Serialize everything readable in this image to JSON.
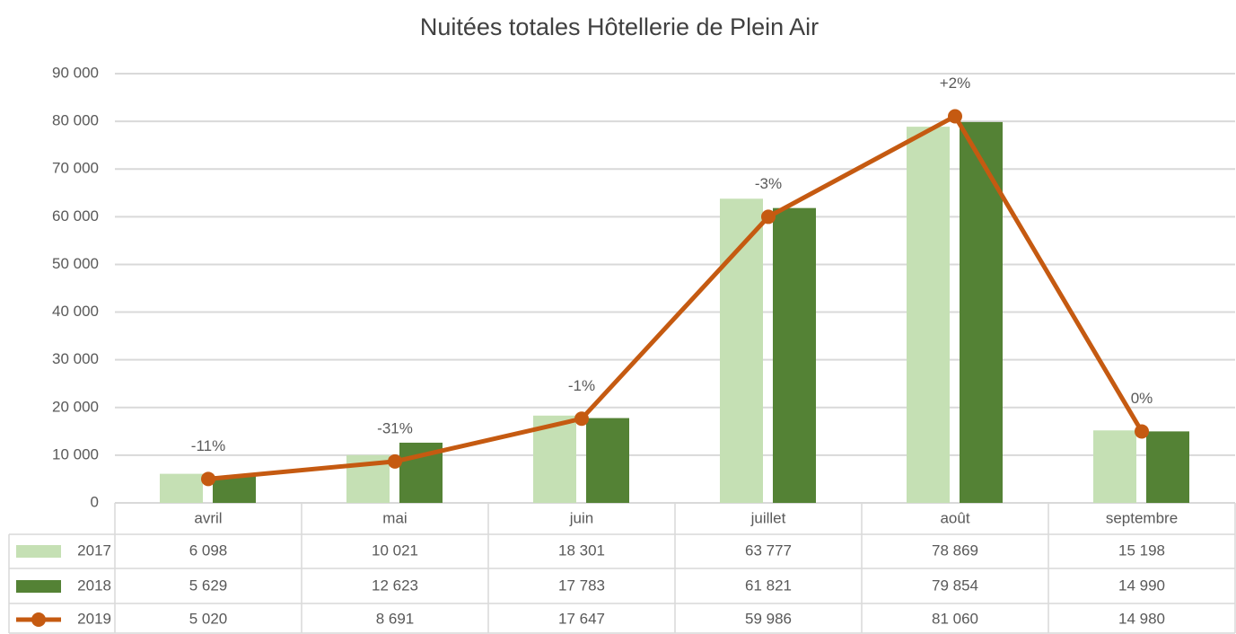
{
  "chart_data": {
    "type": "bar-line-table",
    "title": "Nuitées totales Hôtellerie de Plein Air",
    "categories": [
      "avril",
      "mai",
      "juin",
      "juillet",
      "août",
      "septembre"
    ],
    "series": [
      {
        "name": "2017",
        "type": "bar",
        "color": "#c5e0b4",
        "values": [
          6098,
          10021,
          18301,
          63777,
          78869,
          15198
        ],
        "value_labels": [
          "6 098",
          "10 021",
          "18 301",
          "63 777",
          "78 869",
          "15 198"
        ]
      },
      {
        "name": "2018",
        "type": "bar",
        "color": "#548235",
        "values": [
          5629,
          12623,
          17783,
          61821,
          79854,
          14990
        ],
        "value_labels": [
          "5 629",
          "12 623",
          "17 783",
          "61 821",
          "79 854",
          "14 990"
        ]
      },
      {
        "name": "2019",
        "type": "line",
        "color": "#c55a11",
        "values": [
          5020,
          8691,
          17647,
          59986,
          81060,
          14980
        ],
        "value_labels": [
          "5 020",
          "8 691",
          "17 647",
          "59 986",
          "81 060",
          "14 980"
        ]
      }
    ],
    "annotations": [
      "-11%",
      "-31%",
      "-1%",
      "-3%",
      "+2%",
      "0%"
    ],
    "ylim": [
      0,
      90000
    ],
    "yticks": [
      0,
      {
        "value": 10000,
        "label": "10 000"
      },
      {
        "value": 20000,
        "label": "20 000"
      },
      {
        "value": 30000,
        "label": "30 000"
      },
      {
        "value": 40000,
        "label": "40 000"
      },
      {
        "value": 50000,
        "label": "50 000"
      },
      {
        "value": 60000,
        "label": "60 000"
      },
      {
        "value": 70000,
        "label": "70 000"
      },
      {
        "value": 80000,
        "label": "80 000"
      },
      {
        "value": 90000,
        "label": "90 000"
      }
    ],
    "grid": true
  }
}
